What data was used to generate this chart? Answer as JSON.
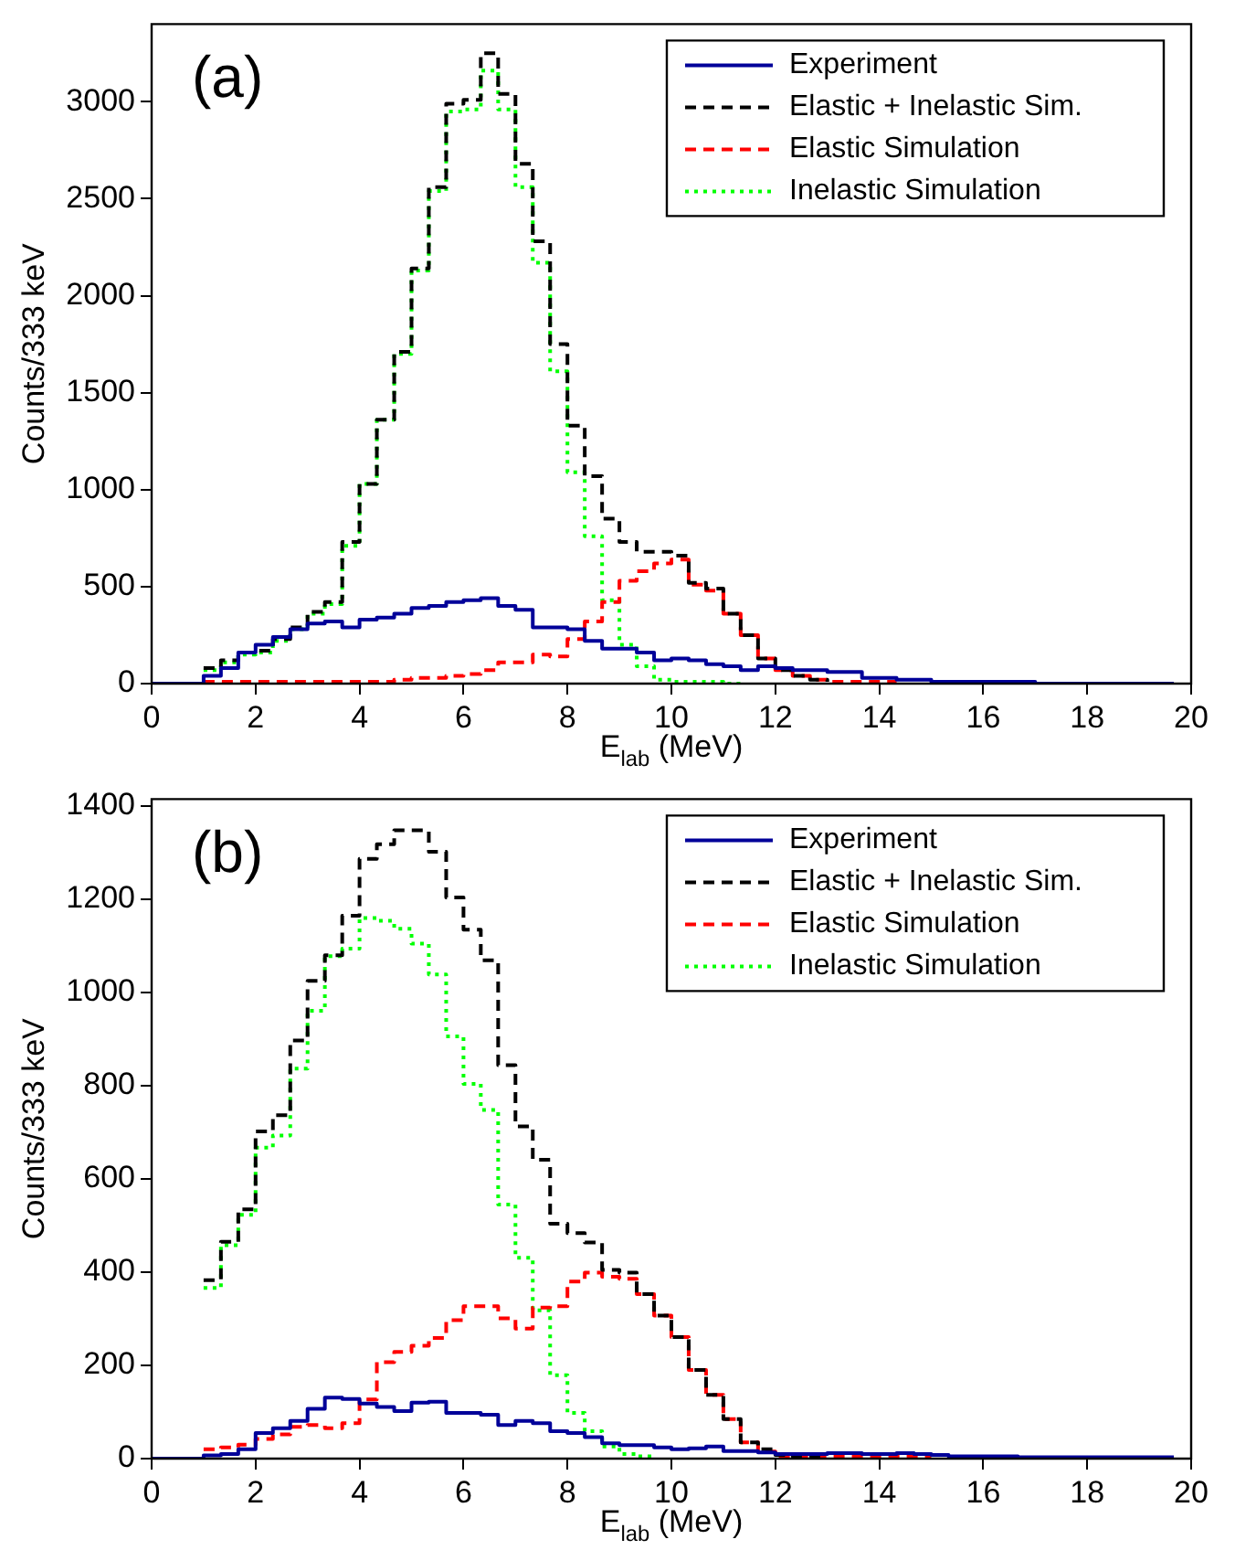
{
  "chart_data": [
    {
      "type": "step",
      "xlabel": "E$_{lab}$ (MeV)",
      "ylabel": "Counts/333 keV",
      "annotations": [
        "(a)"
      ],
      "legend": "top right",
      "grid": false,
      "xlim": [
        0,
        20
      ],
      "xticks": [
        0,
        2,
        4,
        6,
        8,
        10,
        12,
        14,
        16,
        18,
        20
      ],
      "ylim": [
        0,
        3400
      ],
      "yticks": [
        0,
        500,
        1000,
        1500,
        2000,
        2500,
        3000
      ],
      "x": [
        0,
        0.333,
        0.667,
        1,
        1.333,
        1.667,
        2,
        2.333,
        2.667,
        3,
        3.333,
        3.667,
        4,
        4.333,
        4.667,
        5,
        5.333,
        5.667,
        6,
        6.333,
        6.667,
        7,
        7.333,
        7.667,
        8,
        8.333,
        8.667,
        9,
        9.333,
        9.667,
        10,
        10.333,
        10.667,
        11,
        11.333,
        11.667,
        12,
        12.333,
        12.667,
        13,
        13.333,
        13.667,
        14,
        14.333,
        14.667,
        15,
        15.333,
        15.667,
        16,
        16.333,
        16.667,
        17,
        17.333,
        17.667,
        18,
        18.333,
        18.667,
        19,
        19.333,
        19.667
      ],
      "series": [
        {
          "name": "Experiment",
          "color": "#000099",
          "line_style": "solid",
          "values": [
            0,
            0,
            0,
            40,
            80,
            160,
            200,
            240,
            280,
            310,
            320,
            290,
            330,
            340,
            360,
            390,
            400,
            420,
            430,
            440,
            400,
            380,
            290,
            290,
            280,
            220,
            180,
            180,
            160,
            120,
            130,
            120,
            100,
            90,
            70,
            90,
            80,
            70,
            70,
            60,
            60,
            30,
            30,
            20,
            20,
            10,
            10,
            10,
            10,
            10,
            10,
            0,
            0,
            0,
            0,
            0,
            0,
            0,
            0,
            0
          ]
        },
        {
          "name": "Elastic + Inelastic Sim.",
          "color": "#000000",
          "line_style": "dashed",
          "values": [
            null,
            null,
            null,
            80,
            120,
            160,
            170,
            230,
            290,
            370,
            420,
            730,
            1030,
            1360,
            1710,
            2140,
            2560,
            2990,
            3010,
            3250,
            3040,
            2680,
            2280,
            1750,
            1330,
            1070,
            850,
            730,
            680,
            680,
            660,
            520,
            490,
            360,
            250,
            130,
            70,
            40,
            20,
            10,
            null,
            null,
            null,
            null,
            null,
            null,
            null,
            null,
            null,
            null,
            null,
            null,
            null,
            null,
            null,
            null,
            null,
            null,
            null,
            null
          ]
        },
        {
          "name": "Elastic Simulation",
          "color": "#ff0000",
          "line_style": "dashed",
          "values": [
            null,
            null,
            null,
            10,
            10,
            10,
            10,
            10,
            10,
            10,
            10,
            10,
            10,
            10,
            20,
            30,
            30,
            40,
            50,
            70,
            110,
            110,
            150,
            140,
            230,
            320,
            420,
            530,
            580,
            620,
            640,
            510,
            480,
            360,
            250,
            130,
            70,
            40,
            20,
            10,
            10,
            10,
            10,
            10,
            null,
            null,
            null,
            null,
            null,
            null,
            null,
            null,
            null,
            null,
            null,
            null,
            null,
            null,
            null,
            null
          ]
        },
        {
          "name": "Inelastic Simulation",
          "color": "#00ff00",
          "line_style": "dotted",
          "values": [
            null,
            null,
            null,
            70,
            110,
            150,
            160,
            220,
            280,
            360,
            410,
            710,
            1030,
            1360,
            1700,
            2130,
            2540,
            2950,
            2960,
            3160,
            2960,
            2560,
            2170,
            1610,
            1090,
            760,
            430,
            200,
            90,
            20,
            10,
            10,
            10,
            0,
            0,
            null,
            null,
            null,
            null,
            null,
            null,
            null,
            null,
            null,
            null,
            null,
            null,
            null,
            null,
            null,
            null,
            null,
            null,
            null,
            null,
            null,
            null,
            null,
            null,
            null
          ]
        }
      ]
    },
    {
      "type": "step",
      "xlabel": "E$_{lab}$ (MeV)",
      "ylabel": "Counts/333 keV",
      "annotations": [
        "(b)"
      ],
      "legend": "top right",
      "grid": false,
      "xlim": [
        0,
        20
      ],
      "xticks": [
        0,
        2,
        4,
        6,
        8,
        10,
        12,
        14,
        16,
        18,
        20
      ],
      "ylim": [
        0,
        1415
      ],
      "yticks": [
        0,
        200,
        400,
        600,
        800,
        1000,
        1200,
        1400
      ],
      "x": [
        0,
        0.333,
        0.667,
        1,
        1.333,
        1.667,
        2,
        2.333,
        2.667,
        3,
        3.333,
        3.667,
        4,
        4.333,
        4.667,
        5,
        5.333,
        5.667,
        6,
        6.333,
        6.667,
        7,
        7.333,
        7.667,
        8,
        8.333,
        8.667,
        9,
        9.333,
        9.667,
        10,
        10.333,
        10.667,
        11,
        11.333,
        11.667,
        12,
        12.333,
        12.667,
        13,
        13.333,
        13.667,
        14,
        14.333,
        14.667,
        15,
        15.333,
        15.667,
        16,
        16.333,
        16.667,
        17,
        17.333,
        17.667,
        18,
        18.333,
        18.667,
        19,
        19.333,
        19.667
      ],
      "series": [
        {
          "name": "Experiment",
          "color": "#000099",
          "line_style": "solid",
          "values": [
            0,
            0,
            0,
            7,
            10,
            20,
            55,
            65,
            81,
            107,
            131,
            128,
            118,
            111,
            102,
            120,
            122,
            98,
            98,
            94,
            72,
            81,
            76,
            59,
            55,
            46,
            33,
            29,
            29,
            24,
            20,
            22,
            26,
            16,
            16,
            13,
            10,
            10,
            10,
            12,
            12,
            10,
            10,
            12,
            10,
            8,
            5,
            5,
            5,
            5,
            3,
            3,
            3,
            3,
            3,
            3,
            3,
            3,
            3,
            3
          ]
        },
        {
          "name": "Elastic + Inelastic Sim.",
          "color": "#000000",
          "line_style": "dashed",
          "values": [
            null,
            null,
            null,
            383,
            465,
            535,
            702,
            737,
            897,
            1025,
            1080,
            1165,
            1287,
            1318,
            1348,
            1348,
            1302,
            1204,
            1135,
            1069,
            844,
            713,
            641,
            504,
            484,
            464,
            405,
            399,
            353,
            307,
            261,
            190,
            137,
            85,
            35,
            20,
            8,
            5,
            5,
            5,
            null,
            null,
            null,
            null,
            null,
            null,
            null,
            null,
            null,
            null,
            null,
            null,
            null,
            null,
            null,
            null,
            null,
            null,
            null,
            null
          ]
        },
        {
          "name": "Elastic Simulation",
          "color": "#ff0000",
          "line_style": "dashed",
          "values": [
            null,
            null,
            null,
            20,
            24,
            30,
            42,
            52,
            68,
            72,
            65,
            76,
            127,
            207,
            229,
            242,
            259,
            297,
            327,
            327,
            301,
            279,
            324,
            327,
            380,
            399,
            390,
            386,
            353,
            307,
            261,
            190,
            137,
            85,
            35,
            15,
            5,
            5,
            5,
            5,
            5,
            5,
            5,
            5,
            5,
            5,
            null,
            null,
            null,
            null,
            null,
            null,
            null,
            null,
            null,
            null,
            null,
            null,
            null,
            null
          ]
        },
        {
          "name": "Inelastic Simulation",
          "color": "#00ff00",
          "line_style": "dotted",
          "values": [
            null,
            null,
            null,
            366,
            458,
            523,
            667,
            693,
            837,
            961,
            1078,
            1094,
            1160,
            1154,
            1137,
            1105,
            1039,
            906,
            804,
            748,
            545,
            431,
            318,
            179,
            98,
            59,
            26,
            10,
            5,
            3,
            null,
            null,
            null,
            null,
            null,
            null,
            null,
            null,
            null,
            null,
            null,
            null,
            null,
            null,
            null,
            null,
            null,
            null,
            null,
            null,
            null,
            null,
            null,
            null,
            null,
            null,
            null,
            null,
            null,
            null
          ]
        }
      ]
    }
  ]
}
